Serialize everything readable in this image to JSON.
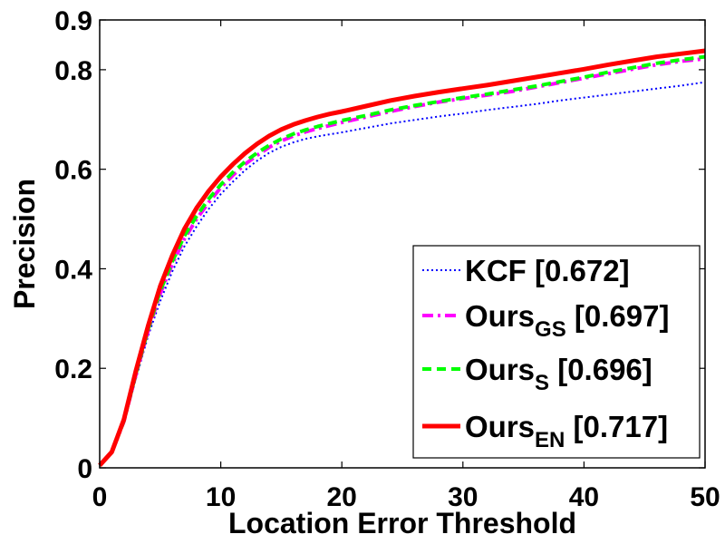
{
  "chart_data": {
    "type": "line",
    "title": "",
    "xlabel": "Location Error Threshold",
    "ylabel": "Precision",
    "xlim": [
      0,
      50
    ],
    "ylim": [
      0,
      0.9
    ],
    "xticks": [
      "0",
      "10",
      "20",
      "30",
      "40",
      "50"
    ],
    "yticks": [
      "0",
      "0.2",
      "0.4",
      "0.6",
      "0.8",
      "0.9"
    ],
    "ytick_values": [
      0,
      0.2,
      0.4,
      0.6,
      0.8,
      0.9
    ],
    "grid": false,
    "legend_position": "bottom-right",
    "x": [
      0,
      1,
      2,
      3,
      4,
      5,
      6,
      7,
      8,
      9,
      10,
      11,
      12,
      13,
      14,
      15,
      16,
      17,
      18,
      19,
      20,
      22,
      24,
      26,
      28,
      30,
      32,
      34,
      36,
      38,
      40,
      42,
      44,
      46,
      48,
      50
    ],
    "series": [
      {
        "name": "KCF",
        "score": "[0.672]",
        "color": "#0000ff",
        "style": "dotted",
        "values": [
          0.005,
          0.03,
          0.09,
          0.18,
          0.265,
          0.335,
          0.395,
          0.445,
          0.485,
          0.52,
          0.55,
          0.575,
          0.598,
          0.617,
          0.633,
          0.645,
          0.654,
          0.661,
          0.666,
          0.67,
          0.674,
          0.683,
          0.692,
          0.699,
          0.706,
          0.712,
          0.719,
          0.725,
          0.731,
          0.738,
          0.744,
          0.75,
          0.756,
          0.762,
          0.768,
          0.775
        ]
      },
      {
        "name": "Ours",
        "name_sub": "GS",
        "score": "[0.697]",
        "color": "#ff00ff",
        "style": "dashdot",
        "values": [
          0.005,
          0.031,
          0.093,
          0.188,
          0.275,
          0.35,
          0.41,
          0.46,
          0.5,
          0.533,
          0.563,
          0.588,
          0.61,
          0.628,
          0.644,
          0.657,
          0.667,
          0.675,
          0.682,
          0.688,
          0.694,
          0.705,
          0.716,
          0.726,
          0.735,
          0.742,
          0.749,
          0.756,
          0.765,
          0.774,
          0.783,
          0.792,
          0.801,
          0.81,
          0.817,
          0.822
        ]
      },
      {
        "name": "Ours",
        "name_sub": "S",
        "score": "[0.696]",
        "color": "#00ff00",
        "style": "dashed",
        "values": [
          0.005,
          0.031,
          0.094,
          0.19,
          0.278,
          0.355,
          0.415,
          0.466,
          0.506,
          0.54,
          0.569,
          0.594,
          0.615,
          0.633,
          0.648,
          0.661,
          0.671,
          0.679,
          0.686,
          0.692,
          0.698,
          0.708,
          0.719,
          0.728,
          0.736,
          0.744,
          0.751,
          0.759,
          0.767,
          0.776,
          0.785,
          0.795,
          0.804,
          0.813,
          0.82,
          0.826
        ]
      },
      {
        "name": "Ours",
        "name_sub": "EN",
        "score": "[0.717]",
        "color": "#ff0000",
        "style": "solid",
        "values": [
          0.005,
          0.032,
          0.097,
          0.196,
          0.285,
          0.365,
          0.427,
          0.48,
          0.522,
          0.556,
          0.585,
          0.61,
          0.632,
          0.651,
          0.667,
          0.68,
          0.69,
          0.698,
          0.705,
          0.711,
          0.716,
          0.727,
          0.738,
          0.747,
          0.755,
          0.762,
          0.769,
          0.777,
          0.785,
          0.793,
          0.801,
          0.81,
          0.818,
          0.826,
          0.832,
          0.838
        ]
      }
    ]
  }
}
